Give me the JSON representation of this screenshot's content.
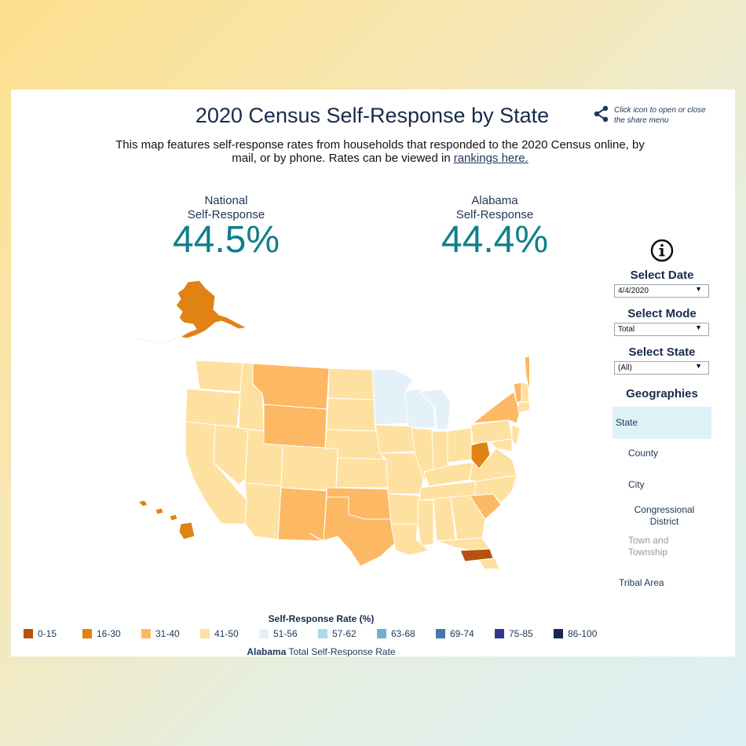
{
  "title": "2020 Census Self-Response by State",
  "share": {
    "icon": "share-icon",
    "hint": "Click icon to open or close the share menu"
  },
  "description": {
    "text": "This map features self-response rates from households that responded to the 2020 Census online, by mail, or by phone. Rates can be viewed in",
    "link": "rankings here."
  },
  "national": {
    "label_line1": "National",
    "label_line2": "Self-Response",
    "value": "44.5%"
  },
  "state_stat": {
    "label_line1": "Alabama",
    "label_line2": "Self-Response",
    "value": "44.4%"
  },
  "controls": {
    "info_icon": "info-icon",
    "date": {
      "label": "Select Date",
      "value": "4/4/2020"
    },
    "mode": {
      "label": "Select Mode",
      "value": "Total"
    },
    "state": {
      "label": "Select State",
      "value": "(All)"
    }
  },
  "geographies": {
    "title": "Geographies",
    "items": [
      {
        "label": "State",
        "state": "active"
      },
      {
        "label": "County",
        "state": "enabled"
      },
      {
        "label": "City",
        "state": "enabled"
      },
      {
        "label": "Congressional District",
        "state": "enabled"
      },
      {
        "label": "Town and Township",
        "state": "disabled"
      },
      {
        "label": "Tribal Area",
        "state": "enabled"
      }
    ]
  },
  "legend": {
    "title": "Self-Response Rate (%)",
    "items": [
      {
        "label": "0-15",
        "color": "#b5520e"
      },
      {
        "label": "16-30",
        "color": "#e08214"
      },
      {
        "label": "31-40",
        "color": "#fdb863"
      },
      {
        "label": "41-50",
        "color": "#fee0a0"
      },
      {
        "label": "51-56",
        "color": "#e4f1f8"
      },
      {
        "label": "57-62",
        "color": "#abd9e9"
      },
      {
        "label": "63-68",
        "color": "#74add1"
      },
      {
        "label": "69-74",
        "color": "#4575b4"
      },
      {
        "label": "75-85",
        "color": "#313695"
      },
      {
        "label": "86-100",
        "color": "#142850"
      }
    ]
  },
  "footer": {
    "state": "Alabama",
    "text": "Total Self-Response Rate"
  },
  "map_colors": {
    "c0_15": "#b5520e",
    "c16_30": "#e08214",
    "c31_40": "#fdb863",
    "c41_50": "#fee0a0",
    "c51_56": "#e4f1f8"
  }
}
